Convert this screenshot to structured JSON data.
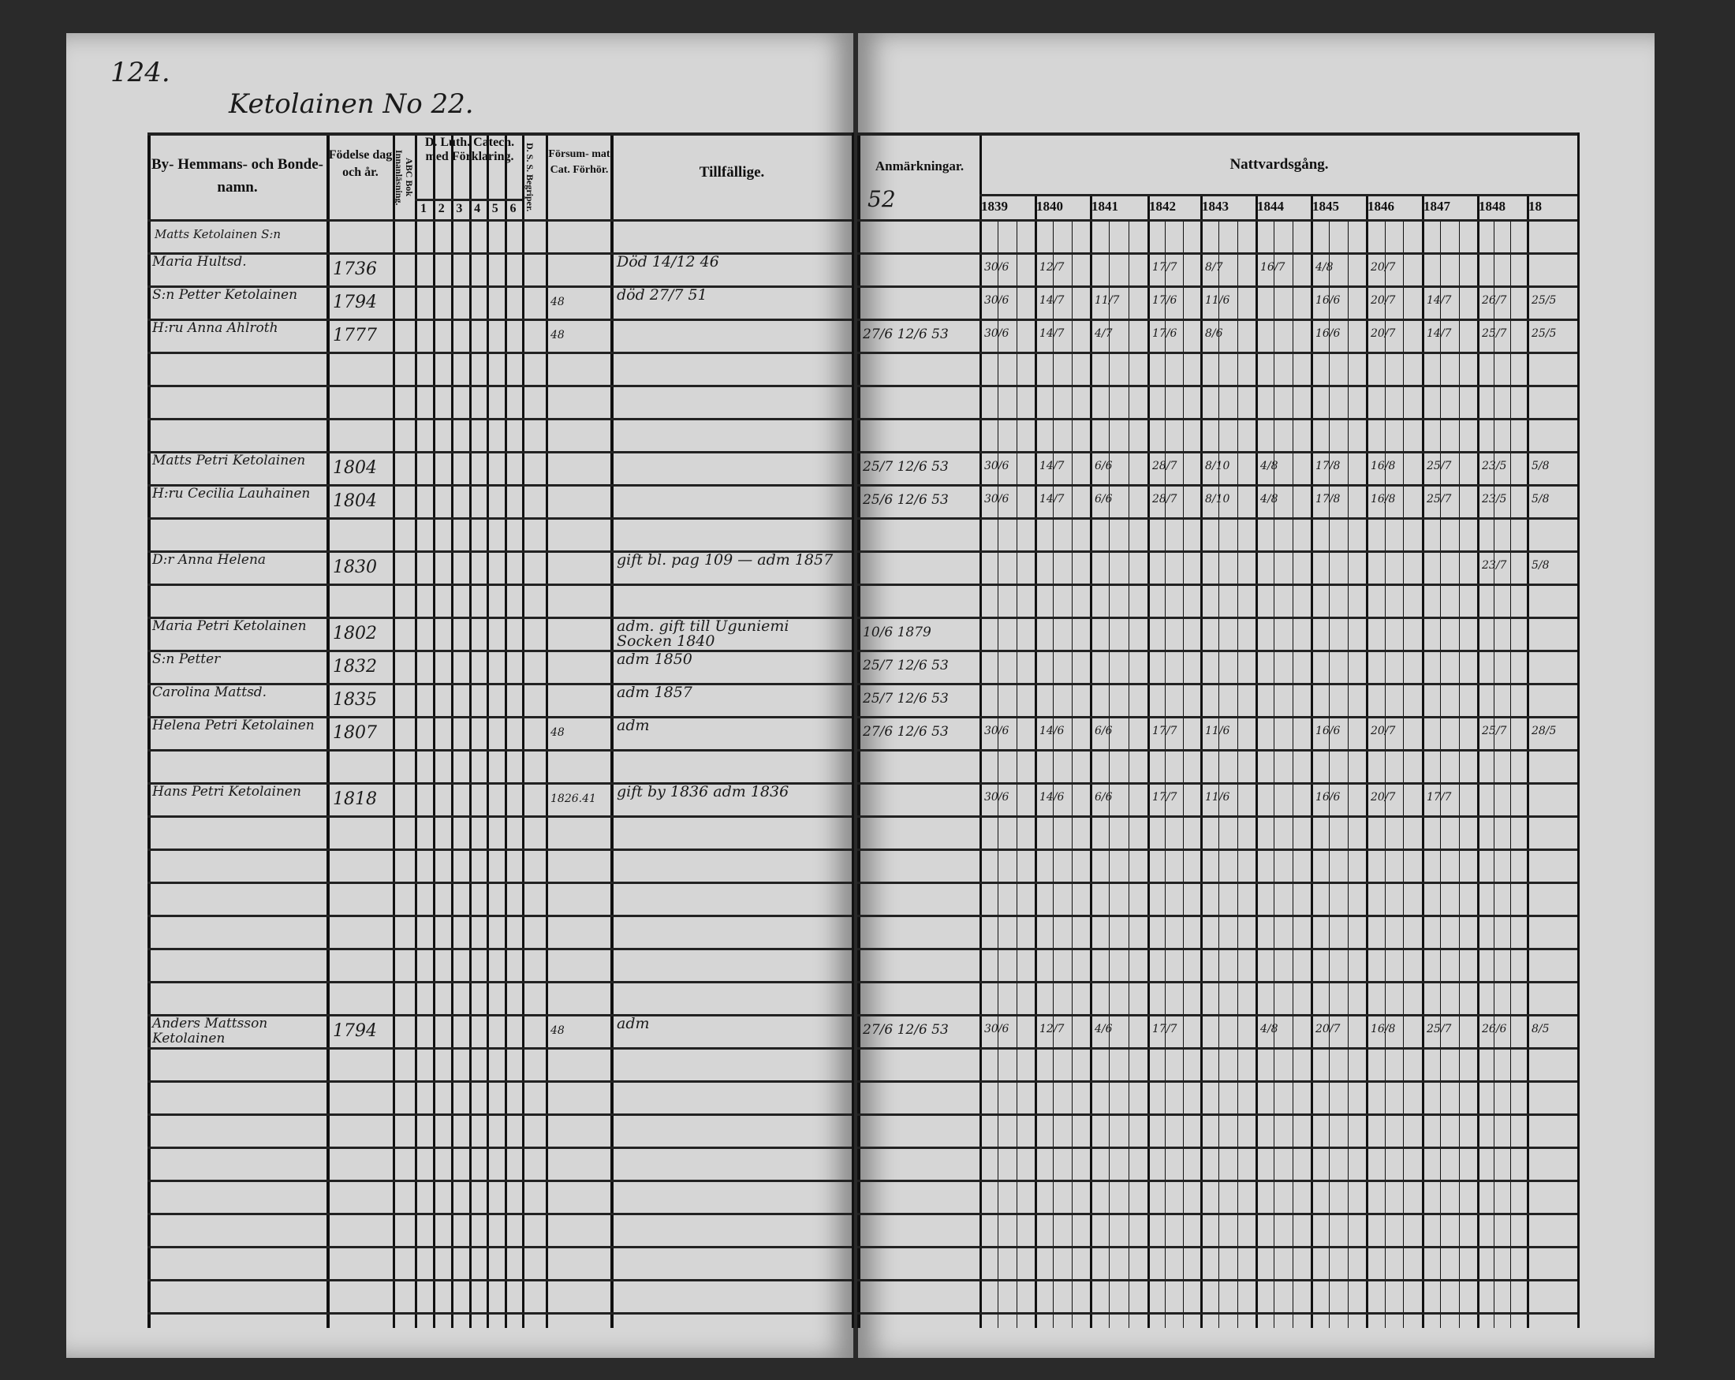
{
  "page_number": "124.",
  "farm_title": "Ketolainen No 22.",
  "headers": {
    "name": "By- Hemmans- och Bonde-namn.",
    "birth": "Födelse dag och år.",
    "abc": "ABC Bok Innanläsning.",
    "catech": "D. Luth. Catech. med Förklaring.",
    "catech_cols": [
      "1",
      "2",
      "3",
      "4",
      "5",
      "6"
    ],
    "dss": "D. S. S. Begriper.",
    "forsummat": "Försum- mat Cat. Förhör.",
    "tillfallige": "Tillfällige.",
    "anmarkningar": "Anmärkningar.",
    "anm_number": "52",
    "nattvard": "Nattvardsgång.",
    "years": [
      "1839",
      "1840",
      "1841",
      "1842",
      "1843",
      "1844",
      "1845",
      "1846",
      "1847",
      "1848",
      "18"
    ]
  },
  "rows": [
    {
      "above": "Matts Ketolainen S:n",
      "name": "Maria Hultsd.",
      "birth": "1736",
      "forsum": "",
      "tillf": "Död 14/12 46",
      "anm": "",
      "natt": [
        "30/6",
        "12/7",
        "",
        "17/7",
        "8/7",
        "16/7",
        "4/8",
        "20/7",
        "",
        "",
        ""
      ]
    },
    {
      "name": "S:n Petter Ketolainen",
      "birth": "1794",
      "forsum": "48",
      "tillf": "död 27/7 51",
      "anm": "",
      "natt": [
        "30/6",
        "14/7",
        "11/7",
        "17/6",
        "11/6",
        "",
        "16/6",
        "20/7",
        "14/7",
        "26/7",
        "25/5"
      ]
    },
    {
      "name": "H:ru Anna Ahlroth",
      "birth": "1777",
      "forsum": "48",
      "tillf": "",
      "anm": "27/6  12/6 53",
      "natt": [
        "30/6",
        "14/7",
        "4/7",
        "17/6",
        "8/6",
        "",
        "16/6",
        "20/7",
        "14/7",
        "25/7",
        "25/5"
      ]
    },
    {
      "name": "Matts Petri Ketolainen",
      "birth": "1804",
      "forsum": "",
      "tillf": "",
      "anm": "25/7  12/6 53",
      "natt": [
        "30/6",
        "14/7",
        "6/6",
        "28/7",
        "8/10",
        "4/8",
        "17/8",
        "16/8",
        "25/7",
        "23/5",
        "5/8"
      ]
    },
    {
      "name": "H:ru Cecilia Lauhainen",
      "birth": "1804",
      "forsum": "",
      "tillf": "",
      "anm": "25/6  12/6 53",
      "natt": [
        "30/6",
        "14/7",
        "6/6",
        "28/7",
        "8/10",
        "4/8",
        "17/8",
        "16/8",
        "25/7",
        "23/5",
        "5/8"
      ]
    },
    {
      "name": "D:r Anna Helena",
      "birth": "1830",
      "forsum": "",
      "tillf": "gift bl. pag 109 — adm 1857",
      "anm": "",
      "natt": [
        "",
        "",
        "",
        "",
        "",
        "",
        "",
        "",
        "",
        "23/7",
        "5/8"
      ]
    },
    {
      "name": "Maria Petri Ketolainen",
      "birth": "1802",
      "forsum": "",
      "tillf": "adm. gift till Uguniemi Socken 1840",
      "anm": "10/6 1879",
      "natt": [
        "",
        "",
        "",
        "",
        "",
        "",
        "",
        "",
        "",
        "",
        ""
      ]
    },
    {
      "name": "S:n Petter",
      "birth": "1832",
      "forsum": "",
      "tillf": "adm 1850",
      "anm": "25/7  12/6 53",
      "natt": [
        "",
        "",
        "",
        "",
        "",
        "",
        "",
        "",
        "",
        "",
        ""
      ]
    },
    {
      "name": "Carolina Mattsd.",
      "birth": "1835",
      "forsum": "",
      "tillf": "adm 1857",
      "anm": "25/7  12/6 53",
      "natt": [
        "",
        "",
        "",
        "",
        "",
        "",
        "",
        "",
        "",
        "",
        ""
      ]
    },
    {
      "name": "Helena Petri Ketolainen",
      "birth": "1807",
      "forsum": "48",
      "tillf": "adm",
      "anm": "27/6  12/6 53",
      "natt": [
        "30/6",
        "14/6",
        "6/6",
        "17/7",
        "11/6",
        "",
        "16/6",
        "20/7",
        "",
        "25/7",
        "28/5"
      ]
    },
    {
      "name": "Hans Petri Ketolainen",
      "birth": "1818",
      "forsum": "1826.41",
      "tillf": "gift by 1836 adm 1836",
      "anm": "",
      "natt": [
        "30/6",
        "14/6",
        "6/6",
        "17/7",
        "11/6",
        "",
        "16/6",
        "20/7",
        "17/7",
        "",
        ""
      ]
    },
    {
      "name": "Anders Mattsson Ketolainen",
      "birth": "1794",
      "forsum": "48",
      "tillf": "adm",
      "anm": "27/6  12/6 53",
      "natt": [
        "30/6",
        "12/7",
        "4/6",
        "17/7",
        "",
        "4/8",
        "20/7",
        "16/8",
        "25/7",
        "26/6",
        "8/5"
      ]
    }
  ]
}
